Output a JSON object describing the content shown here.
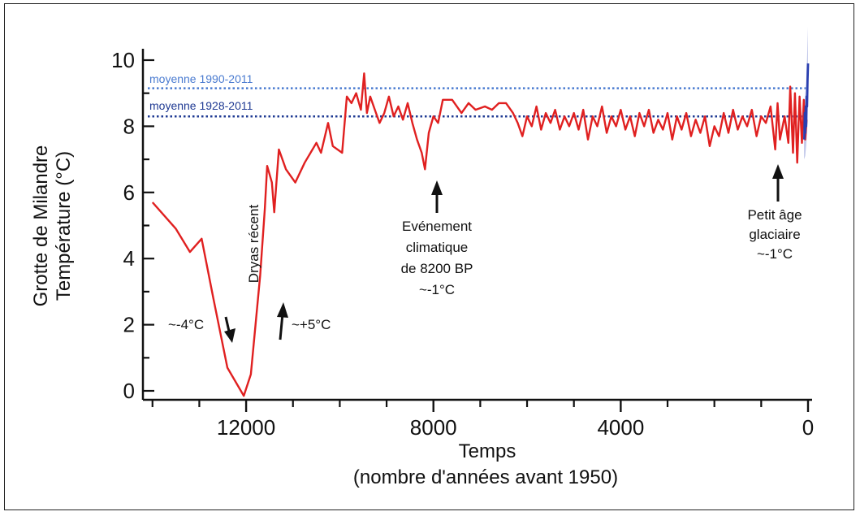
{
  "chart_data": {
    "type": "line",
    "xlabel": "Temps",
    "xlabel_sub": "(nombre d'années avant 1950)",
    "ylabel_line1": "Grotte de Milandre",
    "ylabel_line2": "Température (°C)",
    "xlim": [
      14100,
      0
    ],
    "ylim": [
      0,
      10
    ],
    "x_ticks": [
      12000,
      8000,
      4000,
      0
    ],
    "x_tick_labels": [
      "12000",
      "8000",
      "4000",
      "0"
    ],
    "x_minor_ticks": [
      14000,
      13000,
      11000,
      10000,
      9000,
      7000,
      6000,
      5000,
      3000,
      2000,
      1000
    ],
    "y_ticks": [
      0,
      2,
      4,
      6,
      8,
      10
    ],
    "y_tick_labels": [
      "0",
      "2",
      "4",
      "6",
      "8",
      "10"
    ],
    "colors": {
      "main_series": "#e02020",
      "recent_series": "#2a3fb0",
      "recent_band": "#b8bfe6",
      "mean_1990": "#4a7bd0",
      "mean_1928": "#1f3a93"
    },
    "reference_lines": [
      {
        "label": "moyenne 1990-2011",
        "y": 9.15,
        "color": "#4a7bd0"
      },
      {
        "label": "moyenne 1928-2011",
        "y": 8.3,
        "color": "#1f3a93"
      }
    ],
    "annotations": [
      {
        "id": "dryas",
        "text": "Dryas récent"
      },
      {
        "id": "minus4",
        "text": "~-4°C"
      },
      {
        "id": "plus5",
        "text": "~+5°C"
      },
      {
        "id": "evt1",
        "text": "Evénement"
      },
      {
        "id": "evt2",
        "text": "climatique"
      },
      {
        "id": "evt3",
        "text": "de 8200 BP"
      },
      {
        "id": "evt4",
        "text": "~-1°C"
      },
      {
        "id": "lia1",
        "text": "Petit âge"
      },
      {
        "id": "lia2",
        "text": "glaciaire"
      },
      {
        "id": "lia3",
        "text": "~-1°C"
      }
    ],
    "series": [
      {
        "color": "#e02020",
        "points": [
          [
            14000,
            5.7
          ],
          [
            13500,
            4.9
          ],
          [
            13200,
            4.2
          ],
          [
            12950,
            4.6
          ],
          [
            12700,
            2.8
          ],
          [
            12400,
            0.7
          ],
          [
            12050,
            -0.15
          ],
          [
            11900,
            0.5
          ],
          [
            11700,
            3.5
          ],
          [
            11600,
            5.5
          ],
          [
            11550,
            6.8
          ],
          [
            11450,
            6.3
          ],
          [
            11400,
            5.4
          ],
          [
            11300,
            7.3
          ],
          [
            11150,
            6.7
          ],
          [
            10950,
            6.3
          ],
          [
            10750,
            6.9
          ],
          [
            10500,
            7.5
          ],
          [
            10400,
            7.2
          ],
          [
            10250,
            8.1
          ],
          [
            10150,
            7.4
          ],
          [
            9950,
            7.2
          ],
          [
            9850,
            8.9
          ],
          [
            9750,
            8.7
          ],
          [
            9650,
            9.0
          ],
          [
            9550,
            8.5
          ],
          [
            9480,
            9.6
          ],
          [
            9420,
            8.4
          ],
          [
            9350,
            8.9
          ],
          [
            9250,
            8.5
          ],
          [
            9150,
            8.1
          ],
          [
            9050,
            8.4
          ],
          [
            8950,
            8.9
          ],
          [
            8850,
            8.3
          ],
          [
            8750,
            8.6
          ],
          [
            8650,
            8.2
          ],
          [
            8550,
            8.7
          ],
          [
            8450,
            8.1
          ],
          [
            8350,
            7.6
          ],
          [
            8250,
            7.2
          ],
          [
            8180,
            6.7
          ],
          [
            8100,
            7.8
          ],
          [
            8000,
            8.3
          ],
          [
            7900,
            8.1
          ],
          [
            7800,
            8.8
          ],
          [
            7600,
            8.8
          ],
          [
            7400,
            8.4
          ],
          [
            7250,
            8.7
          ],
          [
            7100,
            8.5
          ],
          [
            6900,
            8.6
          ],
          [
            6750,
            8.5
          ],
          [
            6600,
            8.7
          ],
          [
            6450,
            8.7
          ],
          [
            6300,
            8.4
          ],
          [
            6200,
            8.1
          ],
          [
            6100,
            7.7
          ],
          [
            6000,
            8.3
          ],
          [
            5900,
            8.0
          ],
          [
            5800,
            8.6
          ],
          [
            5700,
            7.9
          ],
          [
            5600,
            8.4
          ],
          [
            5500,
            8.1
          ],
          [
            5400,
            8.5
          ],
          [
            5300,
            7.9
          ],
          [
            5200,
            8.3
          ],
          [
            5100,
            8.0
          ],
          [
            5000,
            8.4
          ],
          [
            4900,
            7.9
          ],
          [
            4800,
            8.5
          ],
          [
            4700,
            7.6
          ],
          [
            4600,
            8.3
          ],
          [
            4500,
            8.0
          ],
          [
            4400,
            8.6
          ],
          [
            4300,
            7.8
          ],
          [
            4200,
            8.3
          ],
          [
            4100,
            8.0
          ],
          [
            4000,
            8.5
          ],
          [
            3900,
            7.9
          ],
          [
            3800,
            8.3
          ],
          [
            3700,
            7.7
          ],
          [
            3600,
            8.4
          ],
          [
            3500,
            8.0
          ],
          [
            3400,
            8.5
          ],
          [
            3300,
            7.8
          ],
          [
            3200,
            8.2
          ],
          [
            3100,
            7.9
          ],
          [
            3000,
            8.4
          ],
          [
            2900,
            7.6
          ],
          [
            2800,
            8.3
          ],
          [
            2700,
            7.9
          ],
          [
            2600,
            8.4
          ],
          [
            2500,
            7.7
          ],
          [
            2400,
            8.2
          ],
          [
            2300,
            7.8
          ],
          [
            2200,
            8.3
          ],
          [
            2100,
            7.4
          ],
          [
            2000,
            8.0
          ],
          [
            1900,
            7.7
          ],
          [
            1800,
            8.4
          ],
          [
            1700,
            7.8
          ],
          [
            1600,
            8.5
          ],
          [
            1500,
            7.9
          ],
          [
            1400,
            8.3
          ],
          [
            1300,
            8.0
          ],
          [
            1200,
            8.5
          ],
          [
            1100,
            7.7
          ],
          [
            1000,
            8.3
          ],
          [
            900,
            8.1
          ],
          [
            800,
            8.6
          ],
          [
            700,
            7.3
          ],
          [
            650,
            8.7
          ],
          [
            600,
            7.6
          ],
          [
            500,
            8.3
          ],
          [
            420,
            7.5
          ],
          [
            380,
            9.2
          ],
          [
            320,
            7.2
          ],
          [
            280,
            9.0
          ],
          [
            230,
            6.9
          ],
          [
            180,
            8.9
          ],
          [
            130,
            7.5
          ],
          [
            90,
            8.8
          ],
          [
            60,
            7.6
          ],
          [
            30,
            8.2
          ]
        ]
      },
      {
        "color": "#2a3fb0",
        "points": [
          [
            80,
            7.6
          ],
          [
            70,
            8.4
          ],
          [
            60,
            7.8
          ],
          [
            50,
            8.6
          ],
          [
            40,
            8.0
          ],
          [
            30,
            8.9
          ],
          [
            20,
            8.6
          ],
          [
            10,
            9.4
          ],
          [
            0,
            9.9
          ]
        ],
        "band": [
          [
            85,
            7.0,
            8.4
          ],
          [
            60,
            7.1,
            9.0
          ],
          [
            40,
            7.4,
            9.3
          ],
          [
            20,
            7.8,
            10.1
          ],
          [
            0,
            8.7,
            11.0
          ]
        ]
      }
    ]
  }
}
